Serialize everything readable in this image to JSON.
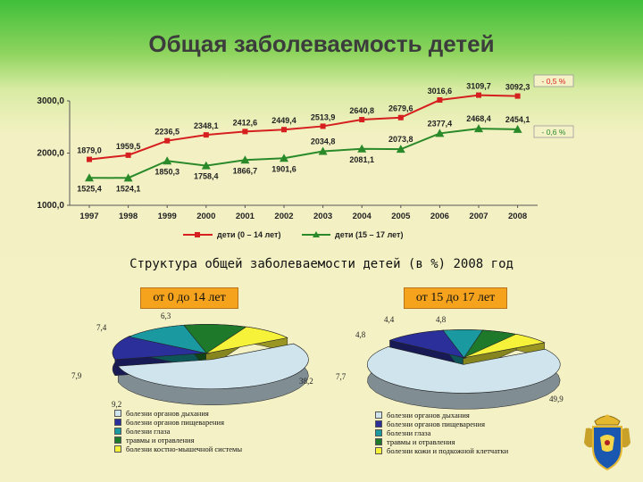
{
  "title": "Общая заболеваемость детей",
  "chart_data": [
    {
      "type": "line",
      "x": [
        "1997",
        "1998",
        "1999",
        "2000",
        "2001",
        "2002",
        "2003",
        "2004",
        "2005",
        "2006",
        "2007",
        "2008"
      ],
      "ylim": [
        1000,
        3000
      ],
      "yticks": [
        "1000,0",
        "2000,0",
        "3000,0"
      ],
      "series": [
        {
          "name": "дети (0 – 14 лет)",
          "color": "#d61f1f",
          "marker": "square",
          "values": [
            1879.0,
            1959.5,
            2236.5,
            2348.1,
            2412.6,
            2449.4,
            2513.9,
            2640.8,
            2679.6,
            3016.6,
            3109.7,
            3092.3
          ],
          "labels": [
            "1879,0",
            "1959,5",
            "2236,5",
            "2348,1",
            "2412,6",
            "2449,4",
            "2513,9",
            "2640,8",
            "2679,6",
            "3016,6",
            "3109,7",
            "3092,3"
          ]
        },
        {
          "name": "дети (15 – 17 лет)",
          "color": "#2a8a2a",
          "marker": "triangle",
          "values": [
            1525.4,
            1524.1,
            1850.3,
            1758.4,
            1866.7,
            1901.6,
            2034.8,
            2081.1,
            2073.8,
            2377.4,
            2468.4,
            2454.1
          ],
          "labels": [
            "1525,4",
            "1524,1",
            "1850,3",
            "1758,4",
            "1866,7",
            "1901,6",
            "2034,8",
            "2081,1",
            "2073,8",
            "2377,4",
            "2468,4",
            "2454,1"
          ]
        }
      ],
      "annotations": [
        "- 0,5 %",
        "- 0,6 %"
      ]
    },
    {
      "type": "pie",
      "title": "от 0 до 14 лет",
      "values": [
        38.2,
        9.2,
        7.9,
        7.4,
        6.3
      ],
      "value_labels": [
        "38,2",
        "9,2",
        "7,9",
        "7,4",
        "6,3"
      ],
      "labels": [
        "болезни органов дыхания",
        "болезни органов пищеварения",
        "болезни глаза",
        "травмы и отравления",
        "болезни костно-мышечной системы"
      ],
      "colors": [
        "#cfe4ec",
        "#2b2f9a",
        "#1a9aa0",
        "#1e7a2a",
        "#f6f23a"
      ]
    },
    {
      "type": "pie",
      "title": "от 15 до 17 лет",
      "values": [
        49.9,
        7.7,
        4.8,
        4.4,
        4.8
      ],
      "value_labels": [
        "49,9",
        "7,7",
        "4,8",
        "4,4",
        "4,8"
      ],
      "labels": [
        "болезни органов дыхания",
        "болезни органов пищеварения",
        "болезни глаза",
        "травмы и отравления",
        "болезни кожи и подкожной клетчатки"
      ],
      "colors": [
        "#cfe4ec",
        "#2b2f9a",
        "#1a9aa0",
        "#1e7a2a",
        "#f6f23a"
      ]
    }
  ],
  "structure_title": "Структура общей заболеваемости детей (в %) 2008 год",
  "group_left": "от 0 до 14 лет",
  "group_right": "от 15 до 17 лет",
  "emblem_icon": "coat-of-arms-icon"
}
